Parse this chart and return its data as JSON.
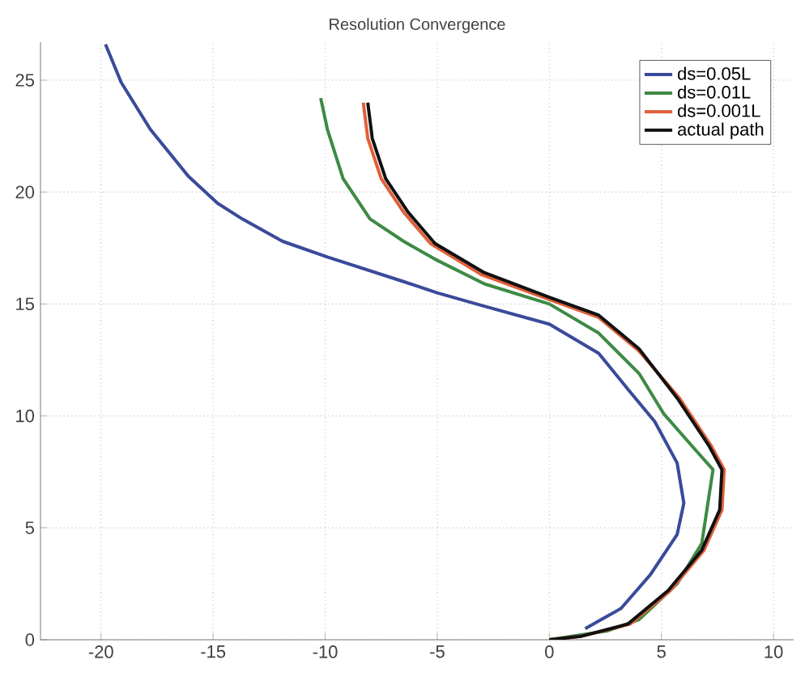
{
  "chart_data": {
    "type": "line",
    "title": "Resolution Convergence",
    "xlim": [
      -22.7,
      10.9
    ],
    "ylim": [
      0,
      26.7
    ],
    "xticks": [
      -20,
      -15,
      -10,
      -5,
      0,
      5,
      10
    ],
    "yticks": [
      0,
      5,
      10,
      15,
      20,
      25
    ],
    "grid": true,
    "legend": "top right",
    "line_style": "solid",
    "marker": "none",
    "series": [
      {
        "name": "ds=0.05L",
        "color": "#3a4a9a",
        "x": [
          -19.8,
          -19.1,
          -17.8,
          -16.1,
          -14.8,
          -13.7,
          -11.9,
          -9.9,
          -6.5,
          -5.0,
          -2.9,
          0,
          2.2,
          3.5,
          4.7,
          5.7,
          6.0,
          5.7,
          4.5,
          3.2,
          1.6
        ],
        "values": [
          26.6,
          24.9,
          22.8,
          20.7,
          19.5,
          18.8,
          17.8,
          17.1,
          16.0,
          15.5,
          14.9,
          14.1,
          12.8,
          11.2,
          9.75,
          7.9,
          6.1,
          4.7,
          2.9,
          1.4,
          0.5
        ]
      },
      {
        "name": "ds=0.01L",
        "color": "#3d8a45",
        "x": [
          -10.2,
          -9.9,
          -9.2,
          -8.0,
          -6.5,
          -5.1,
          -2.9,
          0,
          2.2,
          4.0,
          5.1,
          6.5,
          7.3,
          6.8,
          5.7,
          4.0,
          2.6,
          0
        ],
        "values": [
          24.2,
          22.8,
          20.6,
          18.8,
          17.8,
          17.0,
          15.9,
          15.0,
          13.7,
          11.9,
          10.1,
          8.5,
          7.6,
          4.3,
          2.5,
          0.9,
          0.4,
          0
        ]
      },
      {
        "name": "ds=0.001L",
        "color": "#e0603a",
        "x": [
          -8.3,
          -8.1,
          -7.5,
          -6.5,
          -5.3,
          -3.0,
          0,
          2.2,
          4.0,
          5.8,
          7.2,
          7.8,
          7.7,
          6.9,
          5.4,
          3.6,
          1.4,
          0
        ],
        "values": [
          24.0,
          22.4,
          20.6,
          19.1,
          17.7,
          16.3,
          15.2,
          14.4,
          12.9,
          10.8,
          8.7,
          7.6,
          5.8,
          4.0,
          2.2,
          0.7,
          0.15,
          0
        ]
      },
      {
        "name": "actual path",
        "color": "#111111",
        "x": [
          -8.1,
          -7.9,
          -7.3,
          -6.3,
          -5.1,
          -2.9,
          0,
          2.2,
          4.0,
          5.7,
          7.1,
          7.7,
          7.6,
          6.8,
          5.3,
          3.5,
          1.4,
          0
        ],
        "values": [
          24.0,
          22.4,
          20.6,
          19.1,
          17.7,
          16.4,
          15.3,
          14.5,
          13.0,
          10.8,
          8.7,
          7.6,
          5.8,
          4.0,
          2.2,
          0.7,
          0.15,
          0
        ]
      }
    ]
  }
}
